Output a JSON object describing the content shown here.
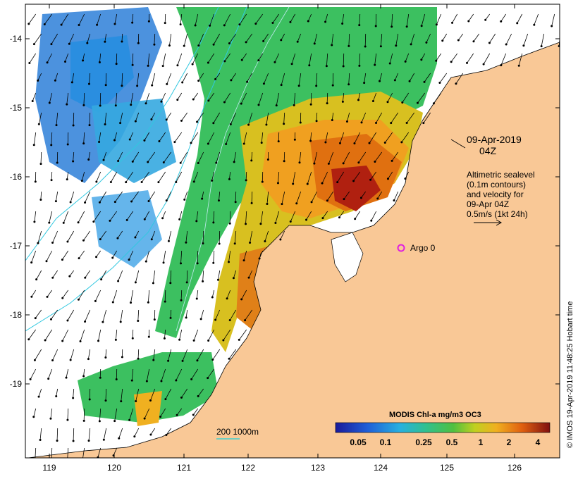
{
  "map": {
    "x_ticks": [
      "119",
      "120",
      "121",
      "122",
      "123",
      "124",
      "125",
      "126"
    ],
    "y_ticks": [
      "-14",
      "-15",
      "-16",
      "-17",
      "-18",
      "-19"
    ]
  },
  "annotation": {
    "date": "09-Apr-2019",
    "time": "04Z",
    "legend_lines": [
      "Altimetric sealevel",
      "(0.1m contours)",
      "and velocity for",
      "09-Apr 04Z",
      "0.5m/s (1kt 24h)"
    ]
  },
  "argo": {
    "label": "Argo 0",
    "color": "#e020e0"
  },
  "isobath": {
    "label": "200  1000m",
    "color": "#40d0d0"
  },
  "colorbar": {
    "title": "MODIS Chl-a mg/m3 OC3",
    "labels": [
      "0.05",
      "0.1",
      "0.25",
      "0.5",
      "1",
      "2",
      "4"
    ]
  },
  "credit": "© IMOS 19-Apr-2019 11:48:25 Hobart time",
  "colors": {
    "land": "#f9c896",
    "low_chl": "#2d7fd8",
    "mid_chl": "#3cc060",
    "high_chl": "#f0a020",
    "peak_chl": "#b02010"
  }
}
